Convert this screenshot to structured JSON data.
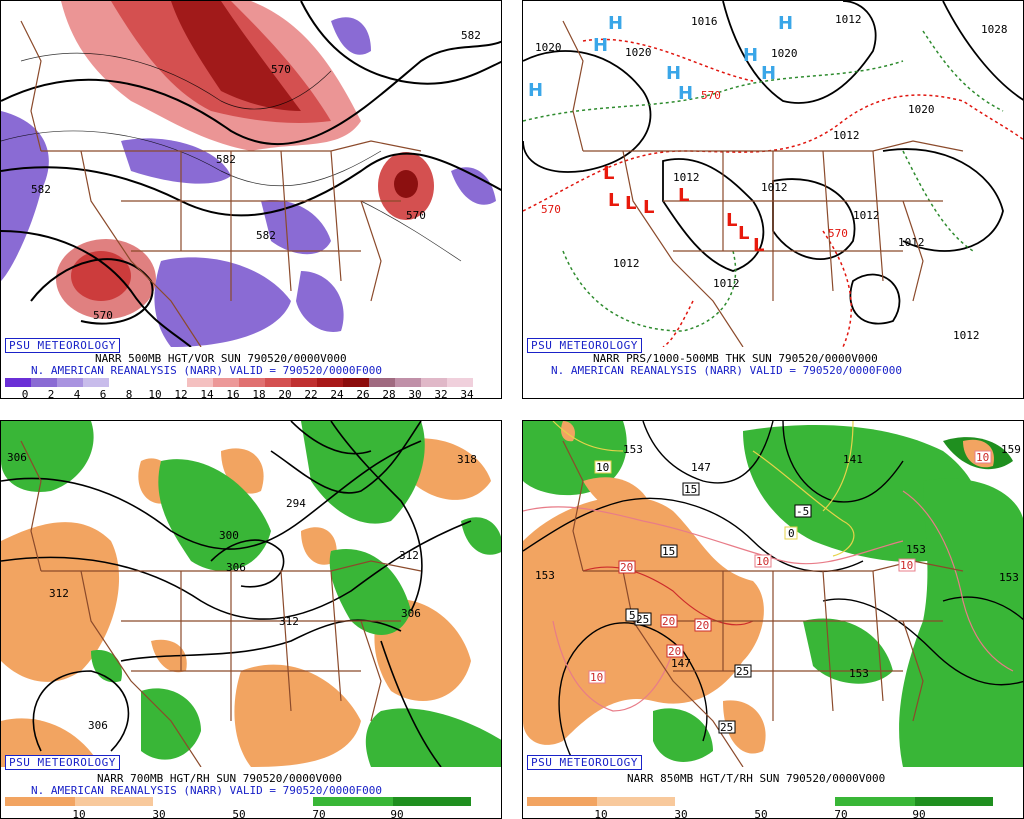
{
  "brand": "PSU METEOROLOGY",
  "panels": [
    {
      "caption1": "NARR 500MB HGT/VOR SUN 790520/0000V000",
      "caption2": "N. AMERICAN REANALYSIS (NARR) VALID = 790520/0000F000",
      "scale_labels": [
        "0",
        "2",
        "4",
        "6",
        "8",
        "10",
        "12",
        "14",
        "16",
        "18",
        "20",
        "22",
        "24",
        "26",
        "28",
        "30",
        "32",
        "34"
      ],
      "contour_labels": [
        "582",
        "582",
        "570",
        "582",
        "570",
        "570",
        "582"
      ]
    },
    {
      "caption1": "NARR PRS/1000-500MB THK SUN 790520/0000V000",
      "caption2": "N. AMERICAN REANALYSIS (NARR) VALID = 790520/0000F000",
      "contour_labels": [
        "1020",
        "1020",
        "1016",
        "1020",
        "1012",
        "1028",
        "1020",
        "1012",
        "1012",
        "1012",
        "1012",
        "1012",
        "1012",
        "1012",
        "1012",
        "570",
        "570",
        "570"
      ],
      "high_symbol": "H",
      "low_symbol": "L"
    },
    {
      "caption1": "NARR 700MB HGT/RH SUN 790520/0000V000",
      "caption2": "N. AMERICAN REANALYSIS (NARR) VALID = 790520/0000F000",
      "scale_labels": [
        "10",
        "30",
        "50",
        "70",
        "90"
      ],
      "contour_labels": [
        "306",
        "318",
        "294",
        "300",
        "306",
        "312",
        "312",
        "306",
        "306",
        "312"
      ]
    },
    {
      "caption1": "NARR 850MB HGT/T/RH SUN 790520/0000V000",
      "scale_labels": [
        "10",
        "30",
        "50",
        "70",
        "90"
      ],
      "contour_labels": [
        "153",
        "147",
        "141",
        "159",
        "153",
        "153",
        "147",
        "153",
        "153"
      ],
      "temp_labels": [
        "10",
        "15",
        "-5",
        "0",
        "10",
        "10",
        "20",
        "20",
        "25",
        "20",
        "20",
        "25",
        "25",
        "10",
        "10",
        "5",
        "15"
      ]
    }
  ],
  "colors": {
    "caption_blue": "#1a22c8",
    "vort_pos": "#d94848",
    "vort_neg": "#7e56c8",
    "rh_dry": "#f2a461",
    "rh_moist": "#39b637",
    "border": "#8b4a2b",
    "high": "#3aa6e8",
    "low": "#e8190c"
  }
}
